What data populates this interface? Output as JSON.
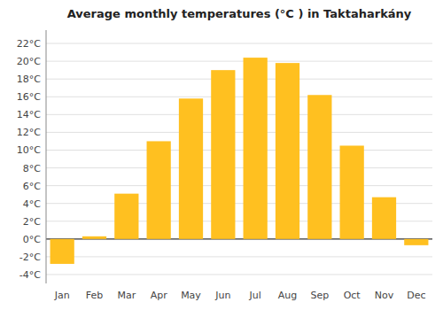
{
  "chart_data": {
    "type": "bar",
    "title": "Average monthly temperatures (°C ) in Taktaharkány",
    "categories": [
      "Jan",
      "Feb",
      "Mar",
      "Apr",
      "May",
      "Jun",
      "Jul",
      "Aug",
      "Sep",
      "Oct",
      "Nov",
      "Dec"
    ],
    "values": [
      -2.8,
      0.3,
      5.1,
      11.0,
      15.8,
      19.0,
      20.4,
      19.8,
      16.2,
      10.5,
      4.7,
      -0.7
    ],
    "color": "#FFC020",
    "ylim": [
      -5.0,
      23.5
    ],
    "yticks": [
      {
        "value": -4,
        "label": "-4°C"
      },
      {
        "value": -2,
        "label": "-2°C"
      },
      {
        "value": 0,
        "label": "0°C"
      },
      {
        "value": 2,
        "label": "2°C"
      },
      {
        "value": 4,
        "label": "4°C"
      },
      {
        "value": 6,
        "label": "6°C"
      },
      {
        "value": 8,
        "label": "8°C"
      },
      {
        "value": 10,
        "label": "10°C"
      },
      {
        "value": 12,
        "label": "12°C"
      },
      {
        "value": 14,
        "label": "14°C"
      },
      {
        "value": 16,
        "label": "16°C"
      },
      {
        "value": 18,
        "label": "18°C"
      },
      {
        "value": 20,
        "label": "20°C"
      },
      {
        "value": 22,
        "label": "22°C"
      }
    ],
    "grid": true
  }
}
